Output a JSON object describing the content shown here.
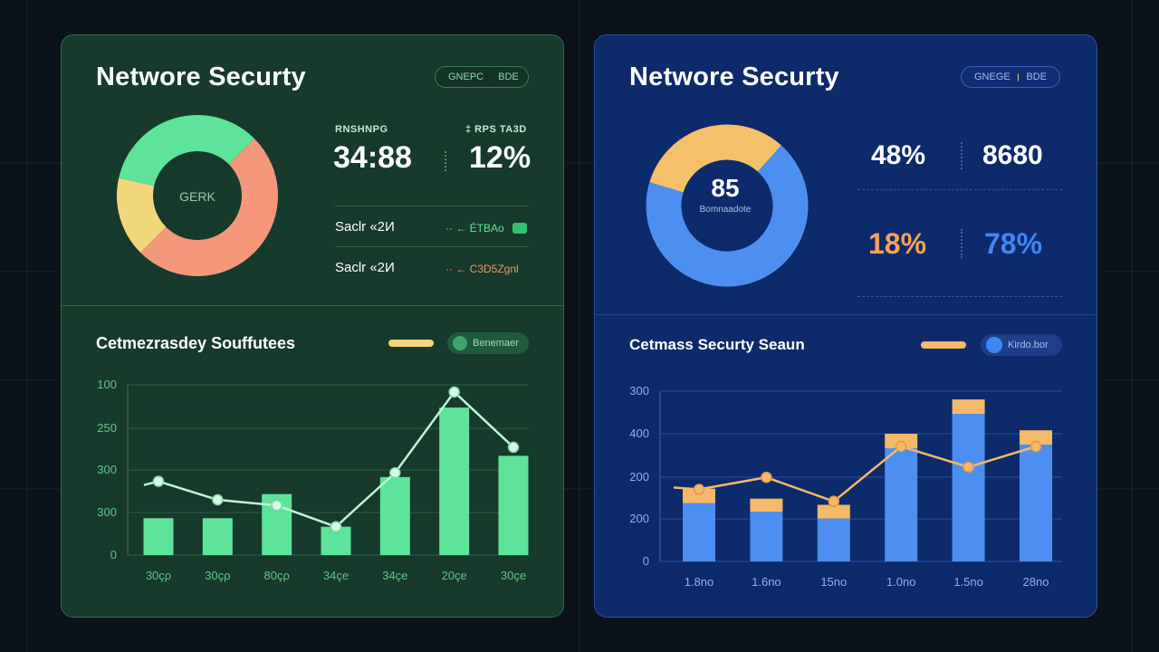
{
  "colors": {
    "green_accent": "#5ee39a",
    "orange": "#f4977a",
    "yellow": "#f2d77a",
    "blue_bar": "#4d8ff0",
    "blue_cap": "#f5b96a"
  },
  "left": {
    "title": "Networe Securty",
    "pill": {
      "text1": "GNEPC",
      "text2": "BDE"
    },
    "donut": {
      "center_label": "GERK",
      "segments": [
        {
          "value": 50,
          "color": "#f4977a"
        },
        {
          "value": 16,
          "color": "#f2d77a"
        },
        {
          "value": 34,
          "color": "#5ee39a"
        }
      ]
    },
    "stats": {
      "label_a": "RNSHNPG",
      "label_b": "‡ RPS TA3D",
      "value_a": "34:88",
      "value_b": "12%"
    },
    "rows": [
      {
        "label": "Saclr «2И",
        "value": "·· ← ÉTBAo",
        "toggle": true
      },
      {
        "label": "Saclr «2И",
        "value": "·· ← C3D5Zgnl",
        "toggle": false
      }
    ],
    "section_title": "Cetmezrasdey Souffutees",
    "legend_chip": "Benemaer",
    "chart_data": {
      "type": "bar",
      "categories": [
        "30çρ",
        "30çρ",
        "80çρ",
        "34çe",
        "34çe",
        "20çe",
        "30çe"
      ],
      "y_ticks": [
        "100",
        "250",
        "300",
        "300",
        "0"
      ],
      "series": [
        {
          "values": [
            1.3,
            1.3,
            2.15,
            1.0,
            2.75,
            5.2,
            3.5
          ]
        },
        {
          "values": [
            2.6,
            1.95,
            1.75,
            1.0,
            2.9,
            5.75,
            3.8
          ]
        }
      ],
      "ylim": [
        0,
        6
      ]
    }
  },
  "right": {
    "title": "Networe Securty",
    "pill": {
      "text1": "GNEGE",
      "text2": "BDE"
    },
    "donut": {
      "center_value": "85",
      "center_label": "Bomnaadote",
      "segments": [
        {
          "value": 68,
          "color": "#4d8ff0"
        },
        {
          "value": 32,
          "color": "#f5c06a"
        }
      ]
    },
    "stats": {
      "value_a": "48%",
      "value_b": "8680",
      "value_c": "18%",
      "value_d": "78%"
    },
    "section_title": "Cetmass Securty Seaun",
    "legend_chip": "Kirdo.bor",
    "chart_data": {
      "type": "bar",
      "categories": [
        "1.8no",
        "1.6no",
        "15no",
        "1.0no",
        "1.5no",
        "28no"
      ],
      "y_ticks": [
        "300",
        "400",
        "200",
        "200",
        "0"
      ],
      "series": [
        {
          "values": [
            1.7,
            1.45,
            1.25,
            3.3,
            4.3,
            3.4
          ]
        },
        {
          "values": [
            0.42,
            0.38,
            0.4,
            0.42,
            0.42,
            0.42
          ]
        },
        {
          "values": [
            2.1,
            2.45,
            1.75,
            3.35,
            2.75,
            3.35
          ]
        }
      ],
      "ylim": [
        0,
        4.96
      ]
    }
  }
}
